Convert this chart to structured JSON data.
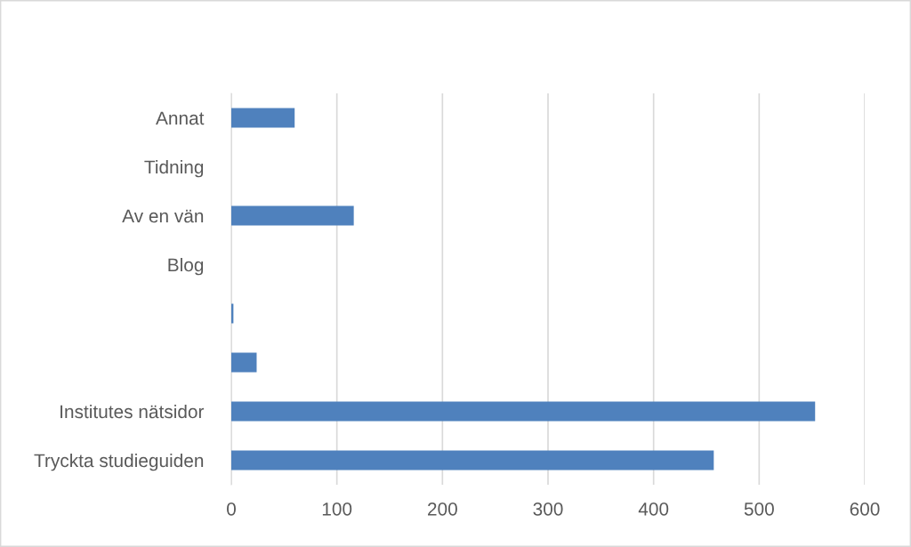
{
  "chart_data": {
    "type": "bar",
    "orientation": "horizontal",
    "categories": [
      "Annat",
      "Tidning",
      "Av en vän",
      "Blog",
      null,
      null,
      "Institutes nätsidor",
      "Tryckta studieguiden"
    ],
    "values": [
      60,
      0,
      116,
      0,
      2,
      24,
      553,
      457
    ],
    "color": "#4f81bd",
    "xlim": [
      0,
      600
    ],
    "xticks": [
      0,
      100,
      200,
      300,
      400,
      500,
      600
    ],
    "grid": "x",
    "legend": false
  }
}
